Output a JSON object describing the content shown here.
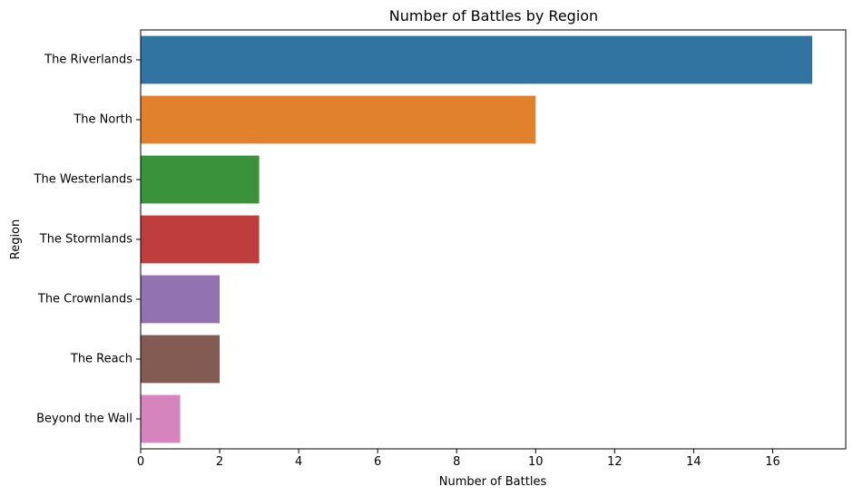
{
  "chart_data": {
    "type": "bar",
    "orientation": "horizontal",
    "title": "Number of Battles by Region",
    "xlabel": "Number of Battles",
    "ylabel": "Region",
    "xlim": [
      0,
      17.85
    ],
    "xticks": [
      0,
      2,
      4,
      6,
      8,
      10,
      12,
      14,
      16
    ],
    "grid": false,
    "categories": [
      "The Riverlands",
      "The North",
      "The Westerlands",
      "The Stormlands",
      "The Crownlands",
      "The Reach",
      "Beyond the Wall"
    ],
    "values": [
      17,
      10,
      3,
      3,
      2,
      2,
      1
    ],
    "colors": [
      "#3274a1",
      "#e1812c",
      "#3a923a",
      "#c03d3e",
      "#9372b2",
      "#845b53",
      "#d684bd"
    ]
  }
}
